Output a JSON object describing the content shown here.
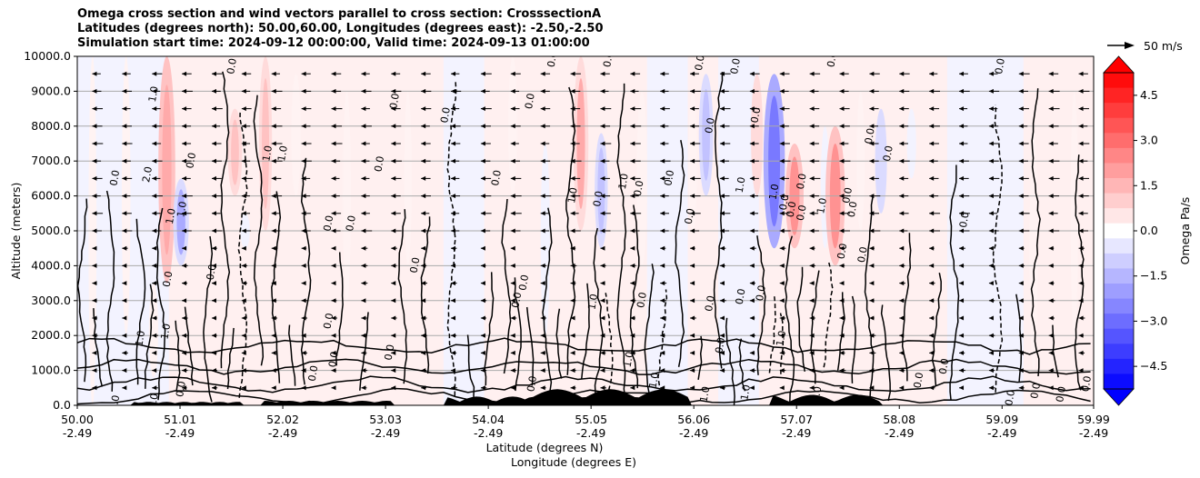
{
  "chart_data": {
    "type": "contourf",
    "title_lines": [
      "Omega cross section and wind vectors parallel to cross section: CrosssectionA",
      "Latitudes (degrees north): 50.00,60.00, Longitudes (degrees east): -2.50,-2.50",
      "Simulation start time: 2024-09-12 00:00:00, Valid time: 2024-09-13 01:00:00"
    ],
    "xlabel": "Latitude (degrees N)",
    "xlabel2": "Longitude (degrees E)",
    "ylabel": "Altitude (meters)",
    "xlim": [
      50.0,
      59.99
    ],
    "ylim": [
      0,
      10000
    ],
    "x_ticks": [
      {
        "value": 50.0,
        "lat": "50.00",
        "lon": "-2.49"
      },
      {
        "value": 51.01,
        "lat": "51.01",
        "lon": "-2.49"
      },
      {
        "value": 52.02,
        "lat": "52.02",
        "lon": "-2.49"
      },
      {
        "value": 53.03,
        "lat": "53.03",
        "lon": "-2.49"
      },
      {
        "value": 54.04,
        "lat": "54.04",
        "lon": "-2.49"
      },
      {
        "value": 55.05,
        "lat": "55.05",
        "lon": "-2.49"
      },
      {
        "value": 56.06,
        "lat": "56.06",
        "lon": "-2.49"
      },
      {
        "value": 57.07,
        "lat": "57.07",
        "lon": "-2.49"
      },
      {
        "value": 58.08,
        "lat": "58.08",
        "lon": "-2.49"
      },
      {
        "value": 59.09,
        "lat": "59.09",
        "lon": "-2.49"
      },
      {
        "value": 59.99,
        "lat": "59.99",
        "lon": "-2.49"
      }
    ],
    "y_ticks": [
      {
        "value": 0,
        "label": "0.0"
      },
      {
        "value": 1000,
        "label": "1000.0"
      },
      {
        "value": 2000,
        "label": "2000.0"
      },
      {
        "value": 3000,
        "label": "3000.0"
      },
      {
        "value": 4000,
        "label": "4000.0"
      },
      {
        "value": 5000,
        "label": "5000.0"
      },
      {
        "value": 6000,
        "label": "6000.0"
      },
      {
        "value": 7000,
        "label": "7000.0"
      },
      {
        "value": 8000,
        "label": "8000.0"
      },
      {
        "value": 9000,
        "label": "9000.0"
      },
      {
        "value": 10000,
        "label": "10000.0"
      }
    ],
    "grid": true,
    "colorbar": {
      "label": "Omega Pa/s",
      "vmin": -5.25,
      "vmax": 5.25,
      "level_step": 0.5,
      "extend": "both",
      "ticks": [
        {
          "value": 4.5,
          "label": "4.5"
        },
        {
          "value": 3.0,
          "label": "3.0"
        },
        {
          "value": 1.5,
          "label": "1.5"
        },
        {
          "value": 0.0,
          "label": "0.0"
        },
        {
          "value": -1.5,
          "label": "−1.5"
        },
        {
          "value": -3.0,
          "label": "−3.0"
        },
        {
          "value": -4.5,
          "label": "−4.5"
        }
      ],
      "max_color": "#ff0000",
      "min_color": "#0000ff"
    },
    "quiver_key": {
      "value": 50,
      "label": "50 m/s"
    },
    "wind_rows_m": [
      500,
      1000,
      1500,
      2000,
      2500,
      3000,
      3500,
      4000,
      4500,
      5000,
      5500,
      6000,
      6500,
      7000,
      7500,
      8000,
      8500,
      9000,
      9500
    ],
    "omega_features": [
      {
        "lat": 50.15,
        "alt": [
          0,
          10000
        ],
        "omega": 0.4
      },
      {
        "lat": 50.48,
        "alt": [
          2000,
          10000
        ],
        "omega": 0.5
      },
      {
        "lat": 50.75,
        "alt": [
          800,
          3500
        ],
        "omega": 0.6
      },
      {
        "lat": 50.88,
        "alt": [
          3500,
          10000
        ],
        "omega": 1.8
      },
      {
        "lat": 51.02,
        "alt": [
          4000,
          6500
        ],
        "omega": -1.6
      },
      {
        "lat": 51.55,
        "alt": [
          6000,
          8500
        ],
        "omega": 1.4
      },
      {
        "lat": 51.65,
        "alt": [
          4500,
          5500
        ],
        "omega": -0.6
      },
      {
        "lat": 51.85,
        "alt": [
          5000,
          10000
        ],
        "omega": 1.2
      },
      {
        "lat": 52.15,
        "alt": [
          6000,
          9500
        ],
        "omega": 0.6
      },
      {
        "lat": 52.65,
        "alt": [
          3000,
          9000
        ],
        "omega": 0.4
      },
      {
        "lat": 53.25,
        "alt": [
          4000,
          9000
        ],
        "omega": 0.3
      },
      {
        "lat": 53.78,
        "alt": [
          3000,
          9000
        ],
        "omega": -0.3
      },
      {
        "lat": 54.28,
        "alt": [
          6000,
          10000
        ],
        "omega": 0.5
      },
      {
        "lat": 54.6,
        "alt": [
          2000,
          7500
        ],
        "omega": -0.6
      },
      {
        "lat": 54.95,
        "alt": [
          5000,
          10000
        ],
        "omega": 1.5
      },
      {
        "lat": 55.15,
        "alt": [
          4500,
          7800
        ],
        "omega": -1.2
      },
      {
        "lat": 55.55,
        "alt": [
          4000,
          9000
        ],
        "omega": 0.8
      },
      {
        "lat": 56.05,
        "alt": [
          5000,
          9000
        ],
        "omega": 0.5
      },
      {
        "lat": 56.18,
        "alt": [
          6000,
          9500
        ],
        "omega": -1.4
      },
      {
        "lat": 56.45,
        "alt": [
          1000,
          5000
        ],
        "omega": -0.4
      },
      {
        "lat": 56.68,
        "alt": [
          6000,
          9500
        ],
        "omega": 1.0
      },
      {
        "lat": 56.85,
        "alt": [
          4500,
          9500
        ],
        "omega": -2.5
      },
      {
        "lat": 57.05,
        "alt": [
          4500,
          7500
        ],
        "omega": 2.0
      },
      {
        "lat": 57.35,
        "alt": [
          4500,
          8000
        ],
        "omega": -0.5
      },
      {
        "lat": 57.45,
        "alt": [
          4000,
          8000
        ],
        "omega": 2.2
      },
      {
        "lat": 57.7,
        "alt": [
          5000,
          9000
        ],
        "omega": 0.4
      },
      {
        "lat": 57.9,
        "alt": [
          5500,
          8500
        ],
        "omega": -1.0
      },
      {
        "lat": 58.2,
        "alt": [
          6500,
          8500
        ],
        "omega": -0.6
      },
      {
        "lat": 58.8,
        "alt": [
          1000,
          9000
        ],
        "omega": -0.3
      },
      {
        "lat": 59.4,
        "alt": [
          1000,
          8000
        ],
        "omega": 0.4
      },
      {
        "lat": 59.8,
        "alt": [
          2000,
          9000
        ],
        "omega": 0.3
      }
    ],
    "contour_labels": [
      {
        "lat": 50.4,
        "alt": 6500,
        "text": "0.0"
      },
      {
        "lat": 50.72,
        "alt": 6600,
        "text": "2.0"
      },
      {
        "lat": 50.78,
        "alt": 100,
        "text": "2.0"
      },
      {
        "lat": 50.4,
        "alt": 50,
        "text": "0.0"
      },
      {
        "lat": 50.78,
        "alt": 8900,
        "text": "1.0"
      },
      {
        "lat": 50.95,
        "alt": 5400,
        "text": "1.0"
      },
      {
        "lat": 51.06,
        "alt": 5600,
        "text": "1.0"
      },
      {
        "lat": 51.15,
        "alt": 7000,
        "text": "0.0"
      },
      {
        "lat": 50.92,
        "alt": 3600,
        "text": "0.0"
      },
      {
        "lat": 50.65,
        "alt": 1900,
        "text": "1.0"
      },
      {
        "lat": 50.9,
        "alt": 2100,
        "text": "1.0"
      },
      {
        "lat": 51.35,
        "alt": 3800,
        "text": "0.0"
      },
      {
        "lat": 51.55,
        "alt": 9700,
        "text": "0.0"
      },
      {
        "lat": 51.9,
        "alt": 7200,
        "text": "1.0"
      },
      {
        "lat": 52.05,
        "alt": 7200,
        "text": "1.0"
      },
      {
        "lat": 52.5,
        "alt": 5200,
        "text": "0.0"
      },
      {
        "lat": 52.72,
        "alt": 5200,
        "text": "0.0"
      },
      {
        "lat": 53.0,
        "alt": 6900,
        "text": "0.0"
      },
      {
        "lat": 52.5,
        "alt": 2400,
        "text": "0.0"
      },
      {
        "lat": 53.15,
        "alt": 8700,
        "text": "0.0"
      },
      {
        "lat": 53.35,
        "alt": 4000,
        "text": "0.0"
      },
      {
        "lat": 53.1,
        "alt": 1500,
        "text": "0.0"
      },
      {
        "lat": 53.65,
        "alt": 8300,
        "text": "0.0"
      },
      {
        "lat": 54.15,
        "alt": 6500,
        "text": "0.0"
      },
      {
        "lat": 54.35,
        "alt": 3000,
        "text": "0.0"
      },
      {
        "lat": 54.42,
        "alt": 3500,
        "text": "0.0"
      },
      {
        "lat": 54.48,
        "alt": 8700,
        "text": "0.0"
      },
      {
        "lat": 54.7,
        "alt": 9900,
        "text": "0.0"
      },
      {
        "lat": 54.9,
        "alt": 6000,
        "text": "1.0"
      },
      {
        "lat": 55.25,
        "alt": 9900,
        "text": "0.0"
      },
      {
        "lat": 55.15,
        "alt": 5900,
        "text": "0.0"
      },
      {
        "lat": 55.55,
        "alt": 6200,
        "text": "0.0"
      },
      {
        "lat": 55.4,
        "alt": 6400,
        "text": "1.0"
      },
      {
        "lat": 55.85,
        "alt": 6500,
        "text": "0.0"
      },
      {
        "lat": 56.05,
        "alt": 5400,
        "text": "0.0"
      },
      {
        "lat": 55.58,
        "alt": 3000,
        "text": "0.0"
      },
      {
        "lat": 55.1,
        "alt": 2950,
        "text": "1.0"
      },
      {
        "lat": 56.25,
        "alt": 8000,
        "text": "0.0"
      },
      {
        "lat": 56.15,
        "alt": 9800,
        "text": "0.0"
      },
      {
        "lat": 56.5,
        "alt": 9700,
        "text": "0.0"
      },
      {
        "lat": 56.7,
        "alt": 8300,
        "text": "0.0"
      },
      {
        "lat": 56.55,
        "alt": 6300,
        "text": "1.0"
      },
      {
        "lat": 56.88,
        "alt": 6100,
        "text": "1.0"
      },
      {
        "lat": 56.98,
        "alt": 5800,
        "text": "0.0"
      },
      {
        "lat": 57.05,
        "alt": 5600,
        "text": "0.0"
      },
      {
        "lat": 57.15,
        "alt": 5500,
        "text": "0.0"
      },
      {
        "lat": 57.15,
        "alt": 6400,
        "text": "0.0"
      },
      {
        "lat": 57.35,
        "alt": 5700,
        "text": "1.0"
      },
      {
        "lat": 57.6,
        "alt": 6000,
        "text": "0.0"
      },
      {
        "lat": 57.65,
        "alt": 5600,
        "text": "0.0"
      },
      {
        "lat": 57.55,
        "alt": 4400,
        "text": "0.0"
      },
      {
        "lat": 57.75,
        "alt": 4300,
        "text": "0.0"
      },
      {
        "lat": 57.82,
        "alt": 7700,
        "text": "0.0"
      },
      {
        "lat": 58.0,
        "alt": 7200,
        "text": "0.0"
      },
      {
        "lat": 57.45,
        "alt": 9900,
        "text": "0.0"
      },
      {
        "lat": 56.55,
        "alt": 3100,
        "text": "0.0"
      },
      {
        "lat": 56.75,
        "alt": 3200,
        "text": "0.0"
      },
      {
        "lat": 56.25,
        "alt": 2900,
        "text": "0.0"
      },
      {
        "lat": 56.35,
        "alt": 1700,
        "text": "0.0"
      },
      {
        "lat": 56.95,
        "alt": 1900,
        "text": "1.0"
      },
      {
        "lat": 56.2,
        "alt": 300,
        "text": "1.0"
      },
      {
        "lat": 56.6,
        "alt": 350,
        "text": "1.0"
      },
      {
        "lat": 57.3,
        "alt": 300,
        "text": "1.0"
      },
      {
        "lat": 58.75,
        "alt": 5300,
        "text": "0.0"
      },
      {
        "lat": 59.1,
        "alt": 9700,
        "text": "0.0"
      },
      {
        "lat": 59.2,
        "alt": 200,
        "text": "0.0"
      },
      {
        "lat": 59.45,
        "alt": 400,
        "text": "0.0"
      },
      {
        "lat": 59.7,
        "alt": 300,
        "text": "0.0"
      },
      {
        "lat": 59.95,
        "alt": 600,
        "text": "0.0"
      },
      {
        "lat": 51.05,
        "alt": 450,
        "text": "0.0"
      },
      {
        "lat": 52.35,
        "alt": 900,
        "text": "0.0"
      },
      {
        "lat": 52.55,
        "alt": 1300,
        "text": "0.0"
      },
      {
        "lat": 54.5,
        "alt": 600,
        "text": "0.0"
      },
      {
        "lat": 55.45,
        "alt": 1300,
        "text": "1.0"
      },
      {
        "lat": 55.7,
        "alt": 700,
        "text": "1.0"
      },
      {
        "lat": 58.3,
        "alt": 700,
        "text": "0.0"
      },
      {
        "lat": 58.55,
        "alt": 1100,
        "text": "0.0"
      }
    ]
  }
}
